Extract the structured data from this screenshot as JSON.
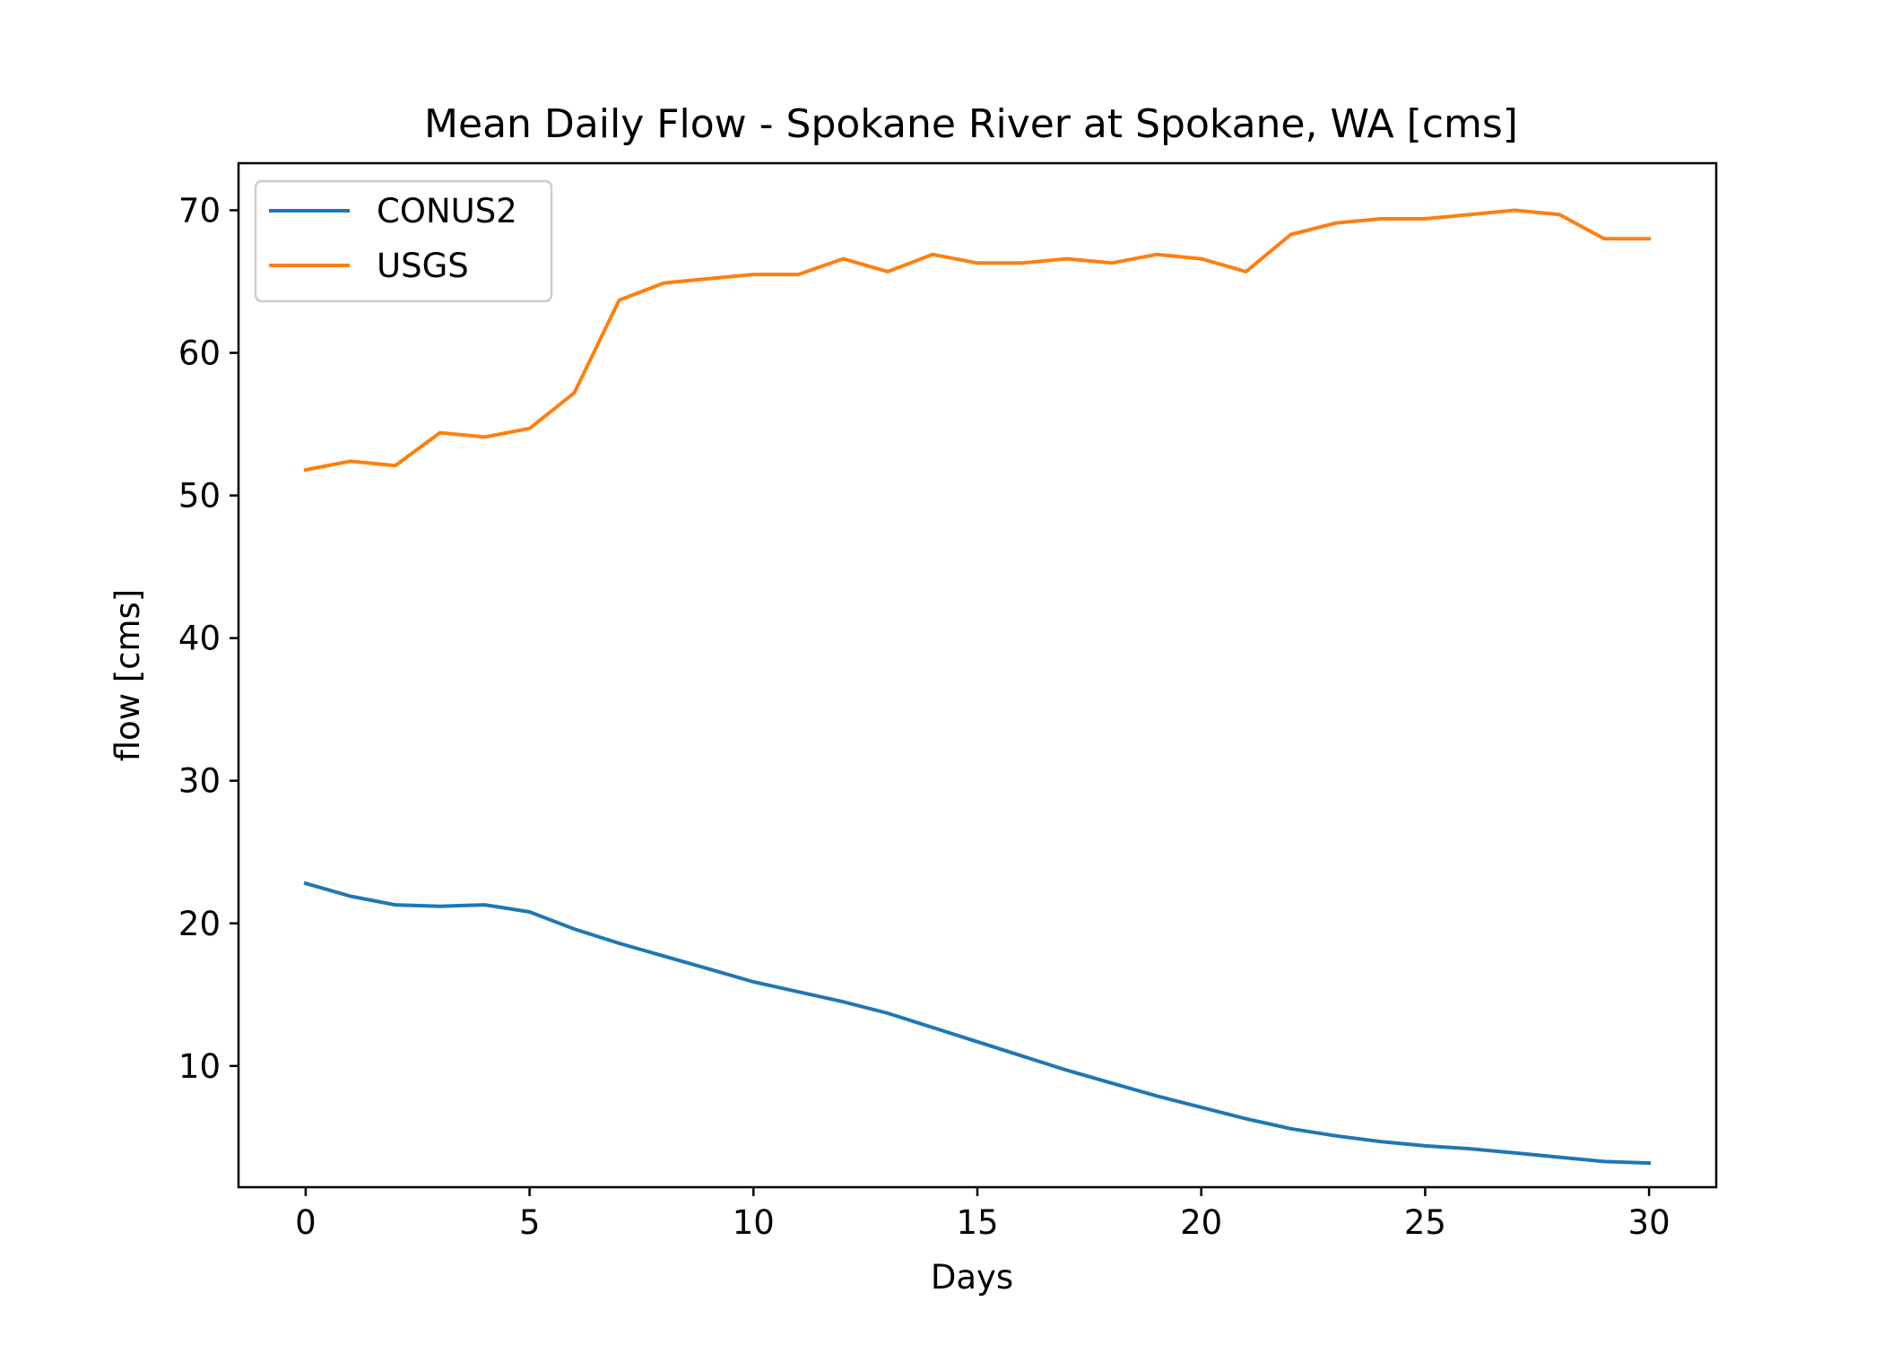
{
  "chart_data": {
    "type": "line",
    "title": "Mean Daily Flow - Spokane River at Spokane, WA [cms]",
    "xlabel": "Days",
    "ylabel": "flow [cms]",
    "x": [
      0,
      1,
      2,
      3,
      4,
      5,
      6,
      7,
      8,
      9,
      10,
      11,
      12,
      13,
      14,
      15,
      16,
      17,
      18,
      19,
      20,
      21,
      22,
      23,
      24,
      25,
      26,
      27,
      28,
      29,
      30
    ],
    "xlim": [
      -1.5,
      31.5
    ],
    "ylim": [
      1.5,
      73.3
    ],
    "xticks": [
      0,
      5,
      10,
      15,
      20,
      25,
      30
    ],
    "yticks": [
      10,
      20,
      30,
      40,
      50,
      60,
      70
    ],
    "grid": false,
    "legend_position": "top-left",
    "series": [
      {
        "name": "CONUS2",
        "color": "#1f77b4",
        "values": [
          22.8,
          21.9,
          21.3,
          21.2,
          21.3,
          20.8,
          19.6,
          18.6,
          17.7,
          16.8,
          15.9,
          15.2,
          14.5,
          13.7,
          12.7,
          11.7,
          10.7,
          9.7,
          8.8,
          7.9,
          7.1,
          6.3,
          5.6,
          5.1,
          4.7,
          4.4,
          4.2,
          3.9,
          3.6,
          3.3,
          3.2
        ]
      },
      {
        "name": "USGS",
        "color": "#ff7f0e",
        "values": [
          51.8,
          52.4,
          52.1,
          54.4,
          54.1,
          54.7,
          57.2,
          63.7,
          64.9,
          65.2,
          65.5,
          65.5,
          66.6,
          65.7,
          66.9,
          66.3,
          66.3,
          66.6,
          66.3,
          66.9,
          66.6,
          65.7,
          68.3,
          69.1,
          69.4,
          69.4,
          69.7,
          70.0,
          69.7,
          68.0,
          68.0
        ]
      }
    ]
  }
}
